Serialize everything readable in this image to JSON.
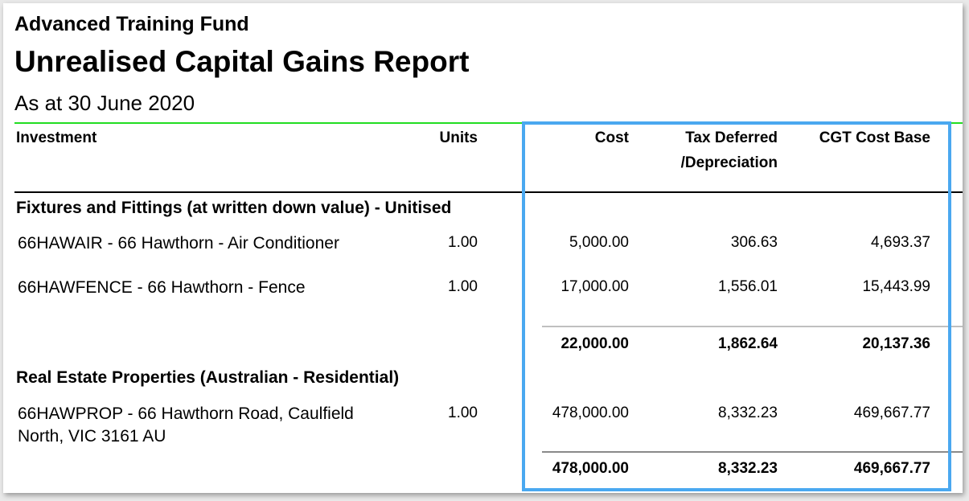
{
  "header": {
    "fund_name": "Advanced Training Fund",
    "report_title": "Unrealised Capital Gains Report",
    "as_at": "As at 30 June 2020"
  },
  "columns": {
    "investment": "Investment",
    "units": "Units",
    "cost": "Cost",
    "tax_deferred_line1": "Tax Deferred",
    "tax_deferred_line2": "/Depreciation",
    "cgt_cost_base": "CGT Cost Base"
  },
  "sections": [
    {
      "title": "Fixtures and Fittings (at written down value) - Unitised",
      "rows": [
        {
          "investment": "66HAWAIR - 66 Hawthorn - Air Conditioner",
          "units": "1.00",
          "cost": "5,000.00",
          "tax_deferred": "306.63",
          "cgt_cost_base": "4,693.37"
        },
        {
          "investment": "66HAWFENCE - 66 Hawthorn - Fence",
          "units": "1.00",
          "cost": "17,000.00",
          "tax_deferred": "1,556.01",
          "cgt_cost_base": "15,443.99"
        }
      ],
      "totals": {
        "cost": "22,000.00",
        "tax_deferred": "1,862.64",
        "cgt_cost_base": "20,137.36"
      }
    },
    {
      "title": "Real Estate Properties (Australian - Residential)",
      "rows": [
        {
          "investment": "66HAWPROP - 66 Hawthorn Road, Caulfield North, VIC 3161 AU",
          "units": "1.00",
          "cost": "478,000.00",
          "tax_deferred": "8,332.23",
          "cgt_cost_base": "469,667.77"
        }
      ],
      "totals": {
        "cost": "478,000.00",
        "tax_deferred": "8,332.23",
        "cgt_cost_base": "469,667.77"
      }
    }
  ],
  "colors": {
    "header_rule": "#22dd22",
    "highlight_border": "#4aa8f0"
  }
}
